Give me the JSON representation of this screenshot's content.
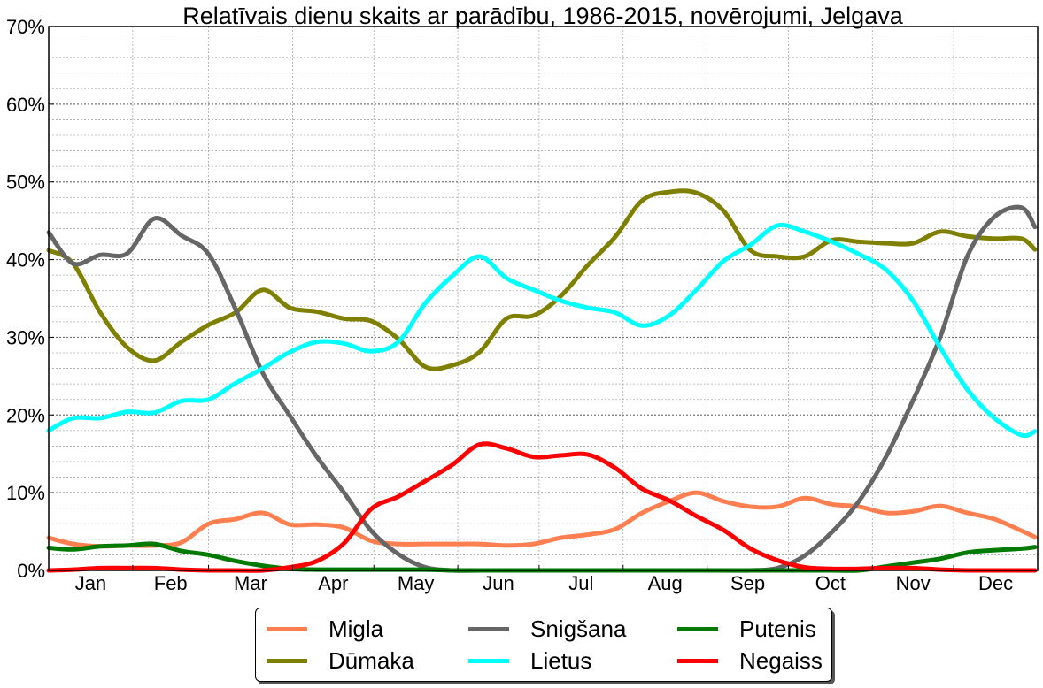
{
  "chart_data": {
    "type": "line",
    "title": "Relatīvais dienu skaits ar parādību, 1986-2015, novērojumi, Jelgava",
    "xlabel": "",
    "ylabel": "",
    "ylim": [
      0,
      70
    ],
    "xlim": [
      1,
      366
    ],
    "grid": true,
    "legend_placement": "bottom-center-outside",
    "y_ticks": [
      "0%",
      "10%",
      "20%",
      "30%",
      "40%",
      "50%",
      "60%",
      "70%"
    ],
    "month_labels": [
      "Jan",
      "Feb",
      "Mar",
      "Apr",
      "May",
      "Jun",
      "Jul",
      "Aug",
      "Sep",
      "Oct",
      "Nov",
      "Dec"
    ],
    "x_day_of_year": [
      1,
      10,
      20,
      30,
      40,
      50,
      60,
      70,
      80,
      90,
      100,
      110,
      120,
      130,
      140,
      150,
      160,
      170,
      180,
      190,
      200,
      210,
      220,
      230,
      240,
      250,
      260,
      270,
      280,
      290,
      300,
      310,
      320,
      330,
      340,
      350,
      360,
      365
    ],
    "series": [
      {
        "name": "Migla",
        "color": "#ff7f50",
        "values": [
          4.2,
          3.4,
          3.1,
          3.2,
          3.2,
          3.6,
          6.0,
          6.6,
          7.4,
          5.9,
          5.9,
          5.5,
          3.8,
          3.4,
          3.4,
          3.4,
          3.4,
          3.2,
          3.4,
          4.2,
          4.6,
          5.3,
          7.4,
          8.9,
          10,
          8.9,
          8.2,
          8.2,
          9.3,
          8.5,
          8.2,
          7.4,
          7.6,
          8.3,
          7.4,
          6.6,
          5.1,
          4.3
        ]
      },
      {
        "name": "Dūmaka",
        "color": "#808000",
        "values": [
          41.2,
          39.5,
          33.2,
          28.7,
          27,
          29.4,
          31.6,
          33.2,
          36.1,
          33.8,
          33.3,
          32.4,
          32.1,
          29.8,
          26.2,
          26.4,
          28.1,
          32.4,
          32.8,
          35.3,
          39.3,
          42.9,
          47.6,
          48.7,
          48.6,
          46.3,
          41.2,
          40.4,
          40.4,
          42.5,
          42.3,
          42.1,
          42.1,
          43.6,
          43.0,
          42.7,
          42.7,
          41.3
        ]
      },
      {
        "name": "Snigšana",
        "color": "#666666",
        "values": [
          43.5,
          39.5,
          40.6,
          40.8,
          45.3,
          43.1,
          40.7,
          33.6,
          25.4,
          19.9,
          14.6,
          10,
          5.1,
          2.1,
          0.4,
          0,
          0,
          0,
          0,
          0,
          0,
          0,
          0,
          0,
          0,
          0,
          0,
          0.3,
          1.9,
          4.9,
          8.9,
          14.6,
          21.9,
          30,
          40.4,
          45.5,
          46.7,
          44.2
        ]
      },
      {
        "name": "Lietus",
        "color": "#00ffff",
        "values": [
          18,
          19.6,
          19.6,
          20.4,
          20.3,
          21.8,
          22,
          24.1,
          26,
          28.1,
          29.4,
          29.2,
          28.2,
          29.4,
          34.4,
          37.9,
          40.4,
          37.6,
          36.1,
          34.7,
          33.8,
          33.2,
          31.5,
          32.8,
          36.1,
          39.8,
          41.9,
          44.4,
          43.6,
          42.3,
          40.7,
          38.7,
          34.7,
          28.7,
          23.3,
          19.6,
          17.4,
          17.9
        ]
      },
      {
        "name": "Putenis",
        "color": "#007a00",
        "values": [
          2.9,
          2.7,
          3.1,
          3.2,
          3.4,
          2.5,
          2.0,
          1.2,
          0.6,
          0.2,
          0.1,
          0.1,
          0.1,
          0.1,
          0.1,
          0,
          0,
          0,
          0,
          0,
          0,
          0,
          0,
          0,
          0,
          0,
          0,
          0,
          0,
          0,
          0,
          0.5,
          1.0,
          1.5,
          2.3,
          2.6,
          2.8,
          3.0
        ]
      },
      {
        "name": "Negaiss",
        "color": "#ff0000",
        "values": [
          0,
          0.1,
          0.3,
          0.3,
          0.3,
          0.1,
          0,
          0,
          0,
          0.4,
          1.2,
          3.5,
          7.9,
          9.5,
          11.5,
          13.6,
          16.2,
          15.7,
          14.6,
          14.8,
          14.9,
          13.2,
          10.5,
          9.0,
          7.0,
          5.2,
          2.8,
          1.3,
          0.4,
          0.2,
          0.2,
          0.3,
          0.3,
          0.1,
          0,
          0,
          0,
          0
        ]
      }
    ]
  }
}
